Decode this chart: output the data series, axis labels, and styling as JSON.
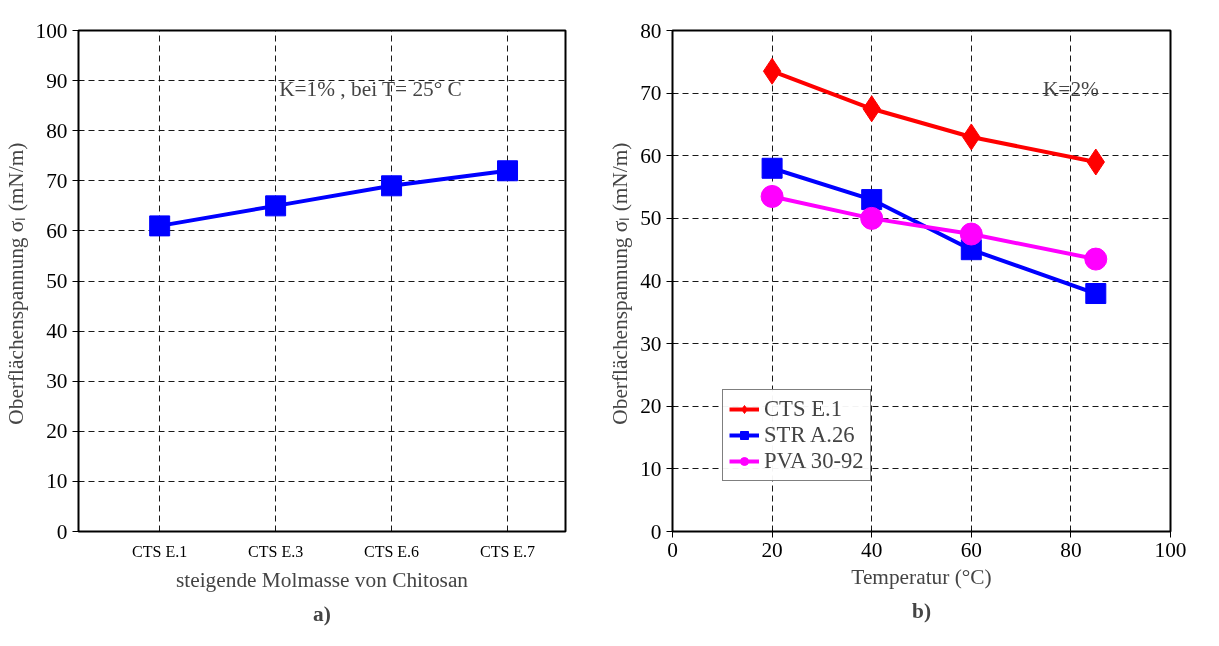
{
  "chart_data": [
    {
      "type": "line",
      "xlabel": "steigende Molmasse von Chitosan",
      "ylabel": "Oberflächenspannung  σₗ (mN/m)",
      "categories": [
        "CTS E.1",
        "CTS E.3",
        "CTS E.6",
        "CTS E.7"
      ],
      "series": [
        {
          "color": "#0000ff",
          "marker": "square",
          "values": [
            61,
            65,
            69,
            72
          ]
        }
      ],
      "ylim": [
        0,
        100
      ],
      "yticks": [
        0,
        10,
        20,
        30,
        40,
        50,
        60,
        70,
        80,
        90,
        100
      ],
      "grid": true,
      "legend": false,
      "line_style": "solid",
      "annotations": [
        "K=1% , bei T= 25° C",
        "a)"
      ]
    },
    {
      "type": "line",
      "xlabel": "Temperatur (°C)",
      "ylabel": "Oberflächenspannung  σₗ (mN/m)",
      "x": [
        20,
        40,
        60,
        85
      ],
      "series": [
        {
          "name": "CTS E.1",
          "color": "#ff0000",
          "marker": "diamond",
          "values": [
            73.5,
            67.5,
            63,
            59
          ]
        },
        {
          "name": "STR A.26",
          "color": "#0000ff",
          "marker": "square",
          "values": [
            58,
            53,
            45,
            38
          ]
        },
        {
          "name": "PVA 30-92",
          "color": "#ff00ff",
          "marker": "circle",
          "values": [
            53.5,
            50,
            47.5,
            43.5
          ]
        }
      ],
      "xlim": [
        0,
        100
      ],
      "xticks": [
        0,
        20,
        40,
        60,
        80,
        100
      ],
      "ylim": [
        0,
        80
      ],
      "yticks": [
        0,
        10,
        20,
        30,
        40,
        50,
        60,
        70,
        80
      ],
      "grid": true,
      "legend": "bottom left",
      "line_style": "solid",
      "annotations": [
        "K=2%",
        "b)"
      ]
    }
  ]
}
